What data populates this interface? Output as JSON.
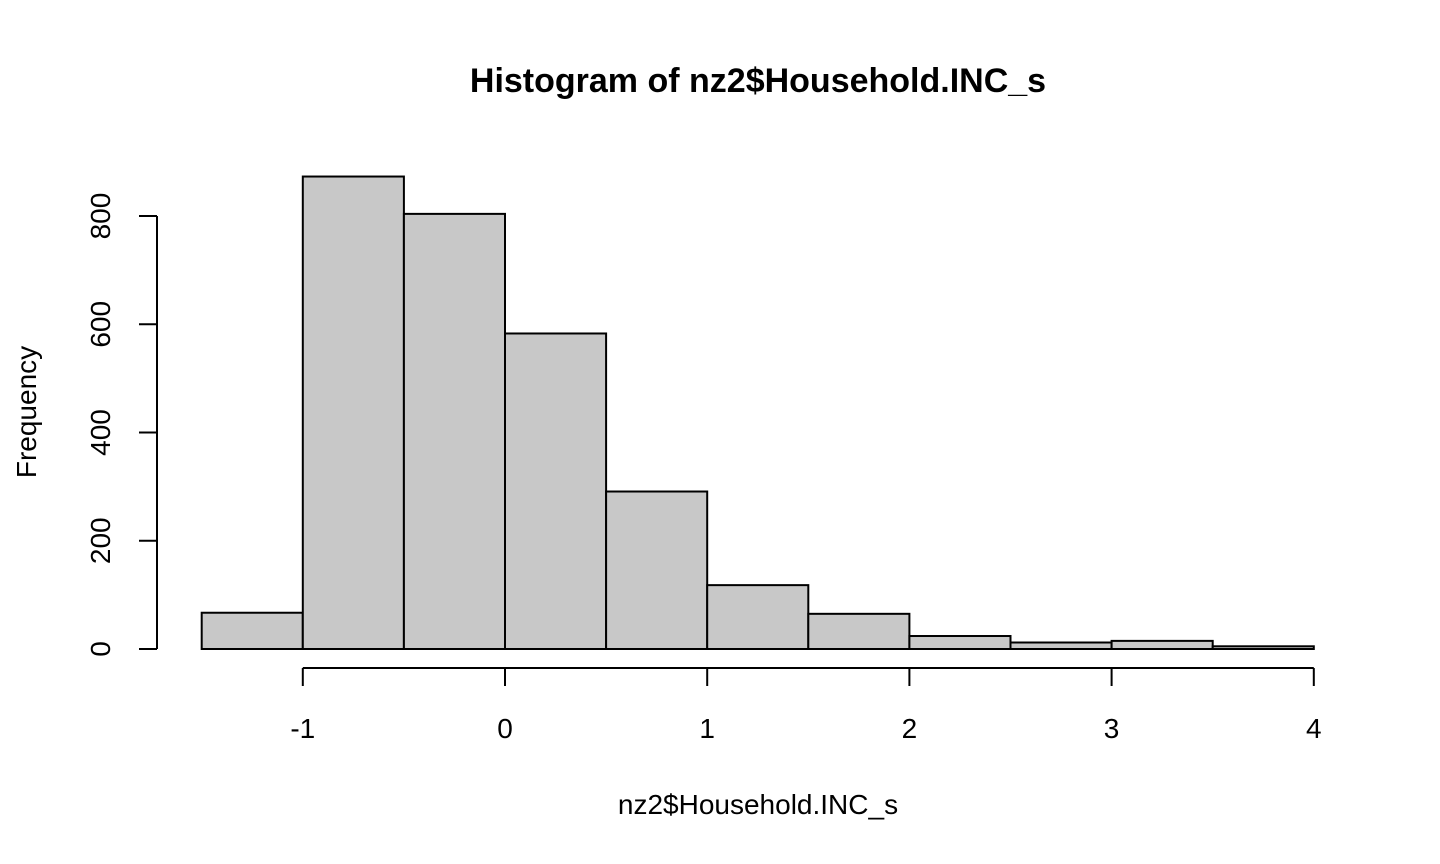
{
  "chart_data": {
    "type": "bar",
    "title": "Histogram of nz2$Household.INC_s",
    "xlabel": "nz2$Household.INC_s",
    "ylabel": "Frequency",
    "bins": [
      {
        "x0": -1.5,
        "x1": -1.0,
        "count": 67
      },
      {
        "x0": -1.0,
        "x1": -0.5,
        "count": 873
      },
      {
        "x0": -0.5,
        "x1": 0.0,
        "count": 804
      },
      {
        "x0": 0.0,
        "x1": 0.5,
        "count": 583
      },
      {
        "x0": 0.5,
        "x1": 1.0,
        "count": 291
      },
      {
        "x0": 1.0,
        "x1": 1.5,
        "count": 118
      },
      {
        "x0": 1.5,
        "x1": 2.0,
        "count": 65
      },
      {
        "x0": 2.0,
        "x1": 2.5,
        "count": 24
      },
      {
        "x0": 2.5,
        "x1": 3.0,
        "count": 12
      },
      {
        "x0": 3.0,
        "x1": 3.5,
        "count": 15
      },
      {
        "x0": 3.5,
        "x1": 4.0,
        "count": 5
      }
    ],
    "x_ticks": [
      -1,
      0,
      1,
      2,
      3,
      4
    ],
    "x_tick_labels": [
      "-1",
      "0",
      "1",
      "2",
      "3",
      "4"
    ],
    "y_ticks": [
      0,
      200,
      400,
      600,
      800
    ],
    "y_tick_labels": [
      "0",
      "200",
      "400",
      "600",
      "800"
    ],
    "xlim": [
      -1.5,
      4.0
    ],
    "ylim": [
      0,
      873
    ],
    "grid": false,
    "legend": "none",
    "bar_fill": "#c8c8c8",
    "bar_stroke": "#000000"
  }
}
